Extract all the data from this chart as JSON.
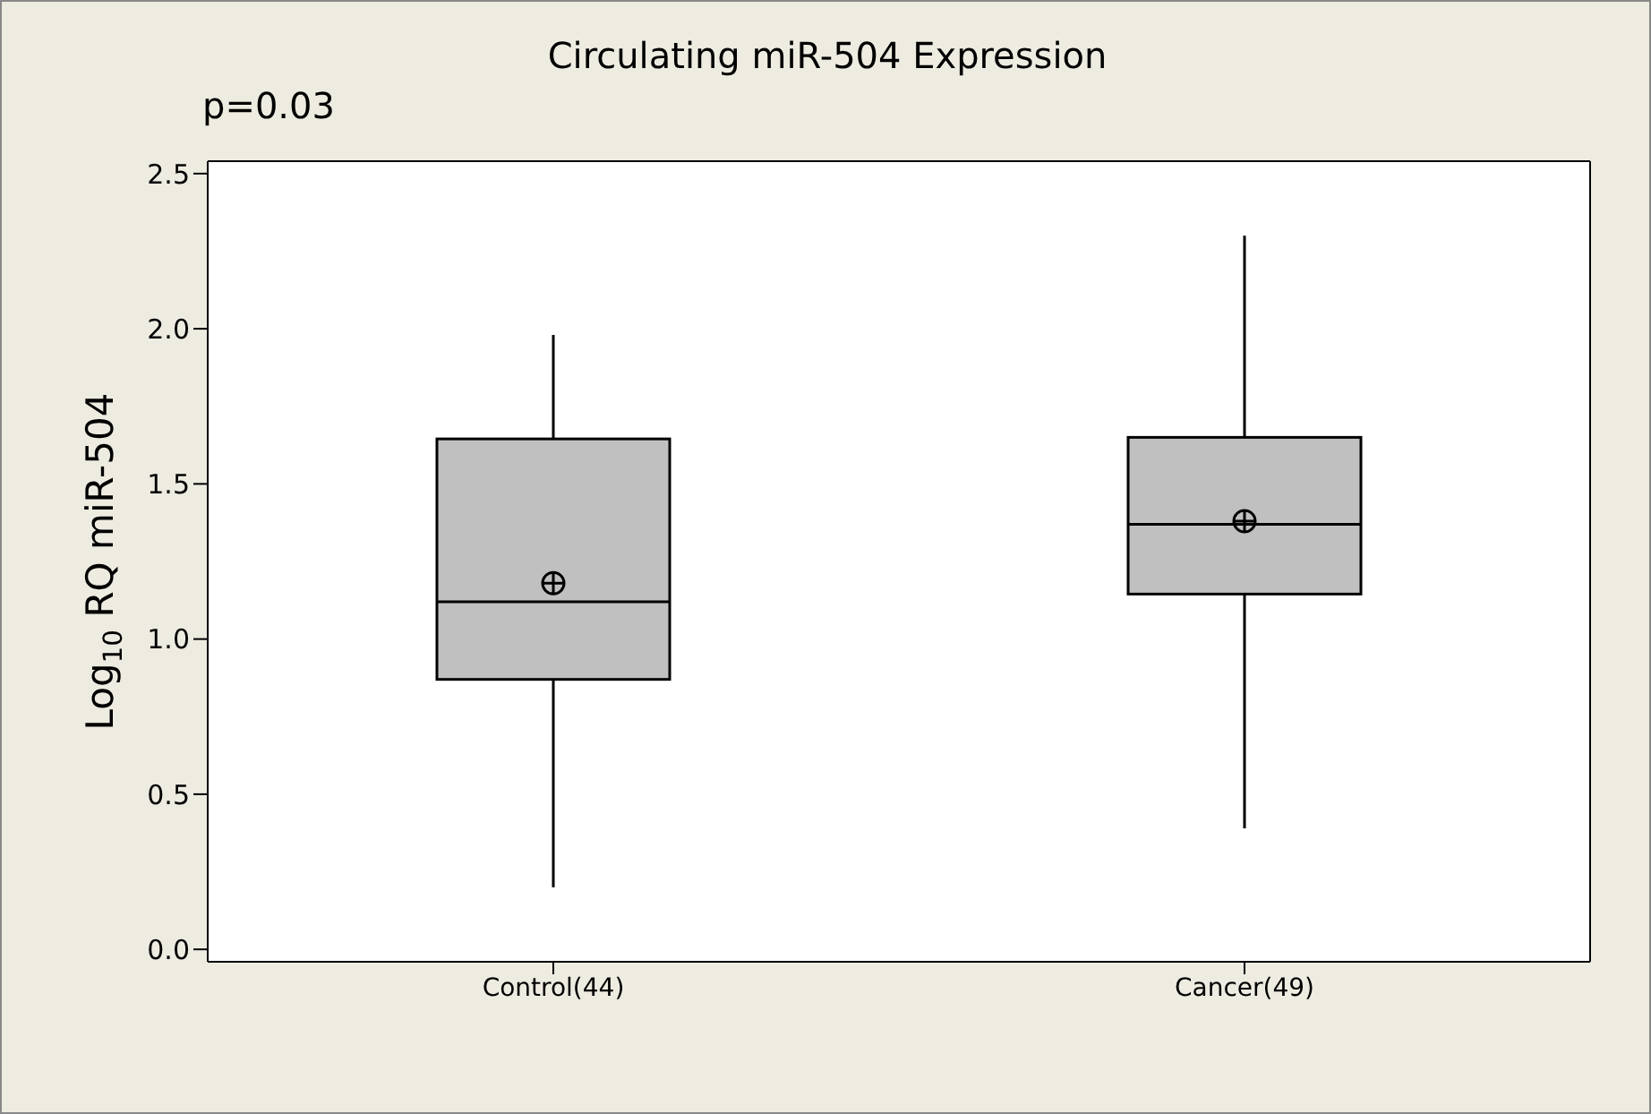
{
  "chart_data": {
    "type": "box",
    "title": "Circulating miR-504 Expression",
    "ylabel": "Log$_{10}$ RQ miR-504",
    "annotations": [
      "p=0.03"
    ],
    "categories": [
      "Control(44)",
      "Cancer(49)"
    ],
    "color": "#c0c0c0",
    "boxes": [
      {
        "low": 0.2,
        "q1": 0.87,
        "median": 1.12,
        "q3": 1.645,
        "high": 1.98,
        "mean": 1.18
      },
      {
        "low": 0.39,
        "q1": 1.145,
        "median": 1.37,
        "q3": 1.65,
        "high": 2.3,
        "mean": 1.38
      }
    ],
    "ylim": [
      -0.04,
      2.54
    ],
    "yticks": [
      {
        "value": 0,
        "label": "0.0"
      },
      0.5,
      {
        "value": 1,
        "label": "1.0"
      },
      1.5,
      {
        "value": 2,
        "label": "2.0"
      },
      2.5
    ]
  }
}
